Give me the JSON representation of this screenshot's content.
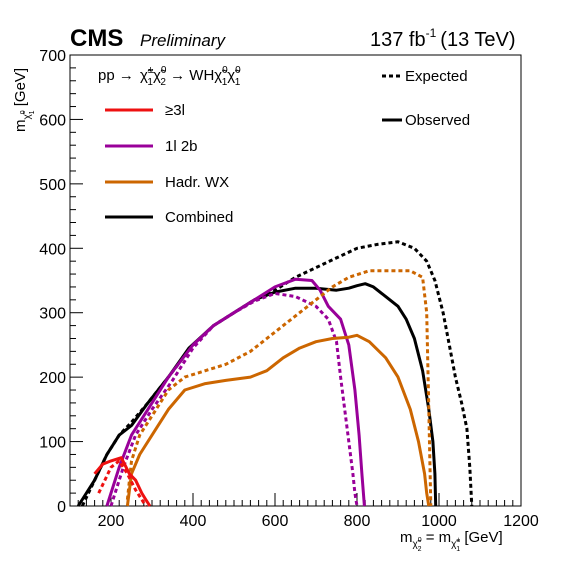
{
  "header": {
    "experiment": "CMS",
    "status": "Preliminary",
    "lumi": "137 fb",
    "lumi_exp": "-1",
    "energy": "(13 TeV)"
  },
  "process_label": {
    "pre": "pp →",
    "chi1": "χ̃",
    "chi1_sup": "±",
    "chi1_sub": "1",
    "chi2": "χ̃",
    "chi2_sup": "0",
    "chi2_sub": "2",
    "mid": " → WH",
    "chi3": "χ̃",
    "chi3_sup": "0",
    "chi3_sub": "1",
    "chi4": "χ̃",
    "chi4_sup": "0",
    "chi4_sub": "1"
  },
  "axes": {
    "xlabel_pre": "m",
    "xlabel_sub_a": "χ̃",
    "xlabel_sub_a_sub": "2",
    "xlabel_sub_a_sup": "0",
    "xlabel_eq": " = m",
    "xlabel_sub_b": "χ̃",
    "xlabel_sub_b_sub": "1",
    "xlabel_sub_b_sup": "±",
    "xlabel_unit": " [GeV]",
    "ylabel_pre": "m",
    "ylabel_sub": "χ̃",
    "ylabel_sub_sub": "1",
    "ylabel_sub_sup": "0",
    "ylabel_unit": " [GeV]"
  },
  "colors": {
    "threeL": "#ee1111",
    "oneL2b": "#990099",
    "hadrWX": "#cc6600",
    "combined": "#000000"
  },
  "chart_data": {
    "type": "line",
    "xlim": [
      100,
      1200
    ],
    "ylim": [
      0,
      700
    ],
    "x_ticks": [
      200,
      400,
      600,
      800,
      1000,
      1200
    ],
    "y_ticks": [
      0,
      100,
      200,
      300,
      400,
      500,
      600,
      700
    ],
    "grid": false,
    "legend_style": [
      {
        "label": "Expected",
        "dash": true
      },
      {
        "label": "Observed",
        "dash": false
      }
    ],
    "legend_analyses": [
      {
        "label": "≥3l",
        "color_key": "threeL"
      },
      {
        "label": "1l 2b",
        "color_key": "oneL2b"
      },
      {
        "label": "Hadr. WX",
        "color_key": "hadrWX"
      },
      {
        "label": "Combined",
        "color_key": "combined"
      }
    ],
    "series": [
      {
        "color_key": "combined",
        "dashed": true,
        "x": [
          130,
          160,
          190,
          220,
          250,
          290,
          340,
          400,
          450,
          500,
          550,
          600,
          650,
          700,
          750,
          800,
          850,
          900,
          940,
          970,
          990,
          1010,
          1025,
          1040,
          1055,
          1068,
          1075,
          1080
        ],
        "y": [
          0,
          40,
          80,
          110,
          130,
          160,
          200,
          250,
          280,
          300,
          320,
          335,
          355,
          370,
          385,
          400,
          406,
          410,
          400,
          380,
          350,
          300,
          250,
          200,
          160,
          120,
          60,
          0
        ]
      },
      {
        "color_key": "combined",
        "dashed": false,
        "x": [
          120,
          160,
          190,
          220,
          250,
          290,
          340,
          390,
          450,
          500,
          550,
          600,
          650,
          700,
          750,
          780,
          800,
          820,
          840,
          870,
          900,
          920,
          940,
          960,
          975,
          985,
          990,
          992
        ],
        "y": [
          0,
          40,
          80,
          110,
          125,
          160,
          200,
          245,
          280,
          300,
          320,
          332,
          338,
          338,
          335,
          338,
          342,
          345,
          340,
          325,
          310,
          290,
          260,
          210,
          150,
          100,
          50,
          0
        ]
      },
      {
        "color_key": "oneL2b",
        "dashed": true,
        "x": [
          200,
          230,
          260,
          300,
          350,
          400,
          450,
          500,
          550,
          600,
          650,
          700,
          730,
          750,
          760,
          770,
          780,
          790,
          795,
          800
        ],
        "y": [
          0,
          60,
          110,
          150,
          195,
          245,
          280,
          300,
          318,
          330,
          325,
          310,
          290,
          255,
          200,
          150,
          100,
          50,
          20,
          0
        ]
      },
      {
        "color_key": "oneL2b",
        "dashed": false,
        "x": [
          190,
          220,
          250,
          290,
          340,
          400,
          450,
          500,
          550,
          600,
          650,
          690,
          710,
          730,
          760,
          780,
          795,
          805,
          812,
          818
        ],
        "y": [
          0,
          60,
          110,
          150,
          200,
          250,
          280,
          300,
          320,
          340,
          352,
          350,
          335,
          310,
          290,
          250,
          180,
          110,
          50,
          0
        ]
      },
      {
        "color_key": "hadrWX",
        "dashed": true,
        "x": [
          240,
          250,
          270,
          310,
          340,
          380,
          430,
          480,
          540,
          580,
          620,
          660,
          700,
          740,
          780,
          830,
          880,
          930,
          960,
          970,
          975,
          980
        ],
        "y": [
          10,
          70,
          110,
          150,
          180,
          200,
          210,
          220,
          240,
          260,
          280,
          300,
          320,
          340,
          355,
          365,
          365,
          365,
          355,
          300,
          150,
          0
        ]
      },
      {
        "color_key": "hadrWX",
        "dashed": false,
        "x": [
          240,
          250,
          270,
          310,
          340,
          380,
          430,
          480,
          540,
          580,
          620,
          660,
          700,
          740,
          780,
          800,
          830,
          870,
          900,
          930,
          950,
          965,
          970,
          975
        ],
        "y": [
          0,
          50,
          80,
          120,
          150,
          180,
          190,
          195,
          200,
          210,
          230,
          245,
          255,
          260,
          262,
          265,
          255,
          230,
          200,
          150,
          100,
          50,
          20,
          0
        ]
      },
      {
        "color_key": "threeL",
        "dashed": true,
        "x": [
          170,
          200,
          220,
          240,
          260,
          270,
          280,
          285
        ],
        "y": [
          20,
          60,
          70,
          50,
          25,
          15,
          5,
          0
        ]
      },
      {
        "color_key": "threeL",
        "dashed": false,
        "x": [
          160,
          180,
          200,
          225,
          245,
          260,
          275,
          285,
          295
        ],
        "y": [
          50,
          65,
          70,
          75,
          50,
          40,
          20,
          10,
          0
        ]
      }
    ]
  }
}
